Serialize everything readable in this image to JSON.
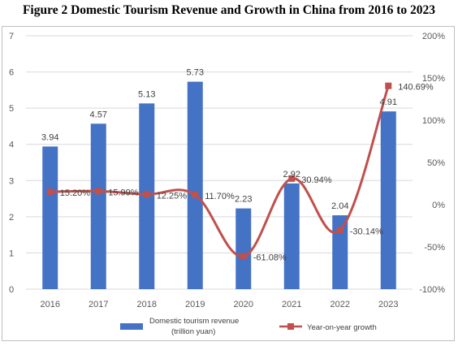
{
  "title": "Figure 2 Domestic Tourism Revenue and Growth in China from 2016 to 2023",
  "chart_data": {
    "type": "bar",
    "categories": [
      "2016",
      "2017",
      "2018",
      "2019",
      "2020",
      "2021",
      "2022",
      "2023"
    ],
    "series": [
      {
        "name": "Domestic tourism revenue (trillion yuan)",
        "type": "bar",
        "axis": "left",
        "values": [
          3.94,
          4.57,
          5.13,
          5.73,
          2.23,
          2.92,
          2.04,
          4.91
        ],
        "labels": [
          "3.94",
          "4.57",
          "5.13",
          "5.73",
          "2.23",
          "2.92",
          "2.04",
          "4.91"
        ],
        "color": "#4472c4"
      },
      {
        "name": "Year-on-year growth",
        "type": "line",
        "axis": "right",
        "values": [
          15.2,
          15.99,
          12.25,
          11.7,
          -61.08,
          30.94,
          -30.14,
          140.69
        ],
        "labels": [
          "15.20%",
          "15.99%",
          "12.25%",
          "11.70%",
          "-61.08%",
          "30.94%",
          "-30.14%",
          "140.69%"
        ],
        "color": "#c0504d"
      }
    ],
    "y_left": {
      "ylim": [
        0,
        7
      ],
      "ticks": [
        "0",
        "1",
        "2",
        "3",
        "4",
        "5",
        "6",
        "7"
      ]
    },
    "y_right": {
      "ylim": [
        -100,
        200
      ],
      "ticks": [
        "-100%",
        "-50%",
        "0%",
        "50%",
        "100%",
        "150%",
        "200%"
      ]
    },
    "legend": {
      "position": "bottom",
      "bar_label_line1": "Domestic tourism revenue",
      "bar_label_line2": "(trillion yuan)",
      "line_label": "Year-on-year growth"
    },
    "grid": true
  }
}
